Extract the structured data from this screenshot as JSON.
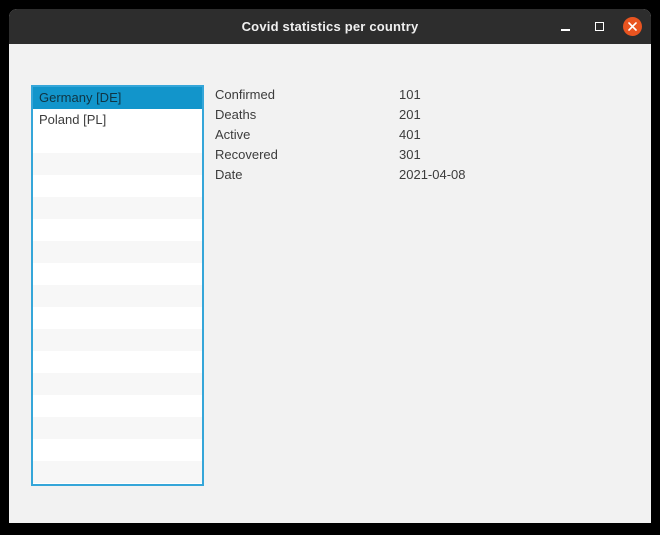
{
  "window": {
    "title": "Covid statistics per country",
    "controls": [
      {
        "id": "minimize",
        "icon": "minimize-icon",
        "glyph": "–"
      },
      {
        "id": "maximize",
        "icon": "maximize-icon",
        "glyph": "□"
      },
      {
        "id": "close",
        "icon": "close-icon",
        "glyph": "✕"
      }
    ]
  },
  "country_list": {
    "items": [
      {
        "label": "Germany [DE]",
        "selected": true
      },
      {
        "label": "Poland [PL]",
        "selected": false
      }
    ],
    "empty_row_count": 16
  },
  "details": {
    "rows": [
      {
        "label": "Confirmed",
        "value": "101"
      },
      {
        "label": "Deaths",
        "value": "201"
      },
      {
        "label": "Active",
        "value": "401"
      },
      {
        "label": "Recovered",
        "value": "301"
      },
      {
        "label": "Date",
        "value": "2021-04-08"
      }
    ]
  },
  "colors": {
    "frame": "#000000",
    "titlebar": "#2d2d2d",
    "titlebar_text": "#f0f0f0",
    "close_button": "#e95420",
    "selection": "#1295cb",
    "selection_text": "#0f3544",
    "list_border": "#35a6d9",
    "window_background": "#f2f2f2",
    "list_stripe": "#f7f7f7",
    "text": "#3c3c3c"
  }
}
